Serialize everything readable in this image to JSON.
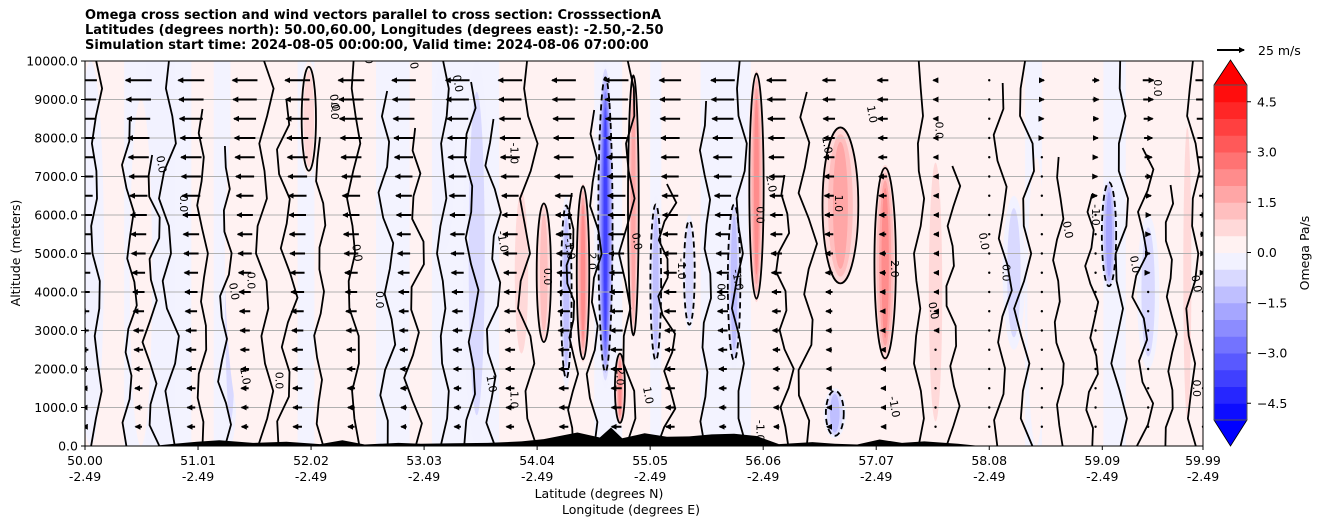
{
  "chart_data": {
    "type": "heatmap",
    "subtype": "filled-contour cross section with wind vectors",
    "title_lines": [
      "Omega cross section and wind vectors parallel to cross section: CrosssectionA",
      "Latitudes (degrees north): 50.00,60.00, Longitudes (degrees east): -2.50,-2.50",
      "Simulation start time: 2024-08-05 00:00:00, Valid time: 2024-08-06 07:00:00"
    ],
    "ylabel": "Altitude (meters)",
    "xlabel_lines": [
      "Latitude (degrees N)",
      "Longitude (degrees E)"
    ],
    "ylim": [
      0,
      10000
    ],
    "y_ticks": [
      "0.0",
      "1000.0",
      "2000.0",
      "3000.0",
      "4000.0",
      "5000.0",
      "6000.0",
      "7000.0",
      "8000.0",
      "9000.0",
      "10000.0"
    ],
    "y_tick_values": [
      0,
      1000,
      2000,
      3000,
      4000,
      5000,
      6000,
      7000,
      8000,
      9000,
      10000
    ],
    "grid": "horizontal",
    "xlim": [
      50.0,
      59.99
    ],
    "x_ticks": [
      {
        "lat": "50.00",
        "lon": "-2.49",
        "value": 50.0
      },
      {
        "lat": "51.01",
        "lon": "-2.49",
        "value": 51.01
      },
      {
        "lat": "52.02",
        "lon": "-2.49",
        "value": 52.02
      },
      {
        "lat": "53.03",
        "lon": "-2.49",
        "value": 53.03
      },
      {
        "lat": "54.04",
        "lon": "-2.49",
        "value": 54.04
      },
      {
        "lat": "55.05",
        "lon": "-2.49",
        "value": 55.05
      },
      {
        "lat": "56.06",
        "lon": "-2.49",
        "value": 56.06
      },
      {
        "lat": "57.07",
        "lon": "-2.49",
        "value": 57.07
      },
      {
        "lat": "58.08",
        "lon": "-2.49",
        "value": 58.08
      },
      {
        "lat": "59.09",
        "lon": "-2.49",
        "value": 59.09
      },
      {
        "lat": "59.99",
        "lon": "-2.49",
        "value": 59.99
      }
    ],
    "colorbar": {
      "label": "Omega Pa/s",
      "range": [
        -5,
        5
      ],
      "step": 0.5,
      "extend": "both",
      "ticks": [
        "-4.5",
        "-3.0",
        "-1.5",
        "0.0",
        "1.5",
        "3.0",
        "4.5"
      ],
      "tick_values": [
        -4.5,
        -3.0,
        -1.5,
        0.0,
        1.5,
        3.0,
        4.5
      ],
      "cmap": "bwr",
      "neg_color": "#0000ff",
      "pos_color": "#ff0000"
    },
    "quiver_key": {
      "label": "25 m/s",
      "speed": 25
    },
    "omega_features": [
      {
        "lat": 50.05,
        "z0": 0,
        "z1": 10000,
        "width": 0.12,
        "value": -0.3
      },
      {
        "lat": 50.5,
        "z0": 0,
        "z1": 9000,
        "width": 0.1,
        "value": 0.3
      },
      {
        "lat": 51.3,
        "z0": 0,
        "z1": 8000,
        "width": 0.08,
        "value": -0.6
      },
      {
        "lat": 51.5,
        "z0": 0,
        "z1": 10000,
        "width": 0.25,
        "value": 0.4
      },
      {
        "lat": 52.0,
        "z0": 7000,
        "z1": 10000,
        "width": 0.08,
        "value": 1.0
      },
      {
        "lat": 52.3,
        "z0": 0,
        "z1": 10000,
        "width": 0.12,
        "value": 0.5
      },
      {
        "lat": 53.2,
        "z0": 5000,
        "z1": 10000,
        "width": 0.1,
        "value": -0.5
      },
      {
        "lat": 53.5,
        "z0": 0,
        "z1": 10000,
        "width": 0.12,
        "value": -0.7
      },
      {
        "lat": 53.9,
        "z0": 2000,
        "z1": 7000,
        "width": 0.1,
        "value": 0.6
      },
      {
        "lat": 54.1,
        "z0": 2500,
        "z1": 6500,
        "width": 0.08,
        "value": 1.3
      },
      {
        "lat": 54.3,
        "z0": 1500,
        "z1": 6500,
        "width": 0.06,
        "value": -1.1
      },
      {
        "lat": 54.45,
        "z0": 2000,
        "z1": 7000,
        "width": 0.07,
        "value": 2.2
      },
      {
        "lat": 54.65,
        "z0": 1500,
        "z1": 10000,
        "width": 0.08,
        "value": -4.0
      },
      {
        "lat": 54.78,
        "z0": 500,
        "z1": 2500,
        "width": 0.05,
        "value": 2.5
      },
      {
        "lat": 54.9,
        "z0": 2500,
        "z1": 10000,
        "width": 0.06,
        "value": 1.8
      },
      {
        "lat": 55.1,
        "z0": 2000,
        "z1": 6500,
        "width": 0.06,
        "value": -1.2
      },
      {
        "lat": 55.4,
        "z0": 3000,
        "z1": 6000,
        "width": 0.06,
        "value": -1.0
      },
      {
        "lat": 55.8,
        "z0": 2000,
        "z1": 6500,
        "width": 0.07,
        "value": -1.3
      },
      {
        "lat": 56.0,
        "z0": 3500,
        "z1": 10000,
        "width": 0.08,
        "value": 2.4
      },
      {
        "lat": 56.75,
        "z0": 4000,
        "z1": 8500,
        "width": 0.2,
        "value": 1.8
      },
      {
        "lat": 57.15,
        "z0": 2000,
        "z1": 7500,
        "width": 0.12,
        "value": 2.2
      },
      {
        "lat": 56.7,
        "z0": 200,
        "z1": 1500,
        "width": 0.1,
        "value": -1.1
      },
      {
        "lat": 57.6,
        "z0": 0,
        "z1": 8000,
        "width": 0.1,
        "value": 0.6
      },
      {
        "lat": 58.3,
        "z0": 2500,
        "z1": 6500,
        "width": 0.1,
        "value": -0.8
      },
      {
        "lat": 58.5,
        "z0": 0,
        "z1": 7500,
        "width": 0.08,
        "value": 0.5
      },
      {
        "lat": 59.15,
        "z0": 4000,
        "z1": 7000,
        "width": 0.08,
        "value": -2.0
      },
      {
        "lat": 59.5,
        "z0": 2000,
        "z1": 6000,
        "width": 0.1,
        "value": -0.8
      },
      {
        "lat": 59.85,
        "z0": 0,
        "z1": 9000,
        "width": 0.06,
        "value": 0.6
      }
    ],
    "contour_labels": [
      {
        "lat": 50.65,
        "z": 7300,
        "text": "0.0"
      },
      {
        "lat": 50.85,
        "z": 6300,
        "text": "0.0"
      },
      {
        "lat": 51.3,
        "z": 4000,
        "text": "0.0"
      },
      {
        "lat": 51.45,
        "z": 4300,
        "text": "0.0"
      },
      {
        "lat": 51.4,
        "z": 1800,
        "text": "1.0"
      },
      {
        "lat": 51.7,
        "z": 1700,
        "text": "0.0"
      },
      {
        "lat": 52.2,
        "z": 8900,
        "text": "0.0"
      },
      {
        "lat": 52.2,
        "z": 8700,
        "text": "0.0"
      },
      {
        "lat": 52.4,
        "z": 5000,
        "text": "0.0"
      },
      {
        "lat": 52.6,
        "z": 3800,
        "text": "0.0"
      },
      {
        "lat": 52.9,
        "z": 10000,
        "text": "0.0"
      },
      {
        "lat": 52.5,
        "z": 10200,
        "text": "-1.0"
      },
      {
        "lat": 53.3,
        "z": 9400,
        "text": "0.0"
      },
      {
        "lat": 53.8,
        "z": 7600,
        "text": "-1.0"
      },
      {
        "lat": 53.7,
        "z": 5300,
        "text": "-1.0"
      },
      {
        "lat": 54.1,
        "z": 4400,
        "text": "0.0"
      },
      {
        "lat": 54.3,
        "z": 5100,
        "text": "-1.0"
      },
      {
        "lat": 54.5,
        "z": 4800,
        "text": "2.0"
      },
      {
        "lat": 54.9,
        "z": 5300,
        "text": "0.0"
      },
      {
        "lat": 55.3,
        "z": 4600,
        "text": "-1.0"
      },
      {
        "lat": 55.8,
        "z": 4300,
        "text": "-1.0"
      },
      {
        "lat": 55.65,
        "z": 4000,
        "text": "0.0"
      },
      {
        "lat": 56.1,
        "z": 6800,
        "text": "2.0"
      },
      {
        "lat": 56.0,
        "z": 6000,
        "text": "0.0"
      },
      {
        "lat": 56.6,
        "z": 7800,
        "text": "1.0"
      },
      {
        "lat": 56.7,
        "z": 6300,
        "text": "1.0"
      },
      {
        "lat": 57.0,
        "z": 8600,
        "text": "1.0"
      },
      {
        "lat": 57.2,
        "z": 4600,
        "text": "2.0"
      },
      {
        "lat": 57.55,
        "z": 3500,
        "text": "0.0"
      },
      {
        "lat": 57.6,
        "z": 8200,
        "text": "0.0"
      },
      {
        "lat": 58.0,
        "z": 5300,
        "text": "0.0"
      },
      {
        "lat": 58.2,
        "z": 4500,
        "text": "0.0"
      },
      {
        "lat": 58.75,
        "z": 5600,
        "text": "0.0"
      },
      {
        "lat": 59.0,
        "z": 6000,
        "text": "-1.0"
      },
      {
        "lat": 59.35,
        "z": 4700,
        "text": "0.0"
      },
      {
        "lat": 59.55,
        "z": 9300,
        "text": "0.0"
      },
      {
        "lat": 59.9,
        "z": 4200,
        "text": "0.0"
      },
      {
        "lat": 59.9,
        "z": 1500,
        "text": "0.0"
      },
      {
        "lat": 57.2,
        "z": 1000,
        "text": "-1.0"
      },
      {
        "lat": 56.0,
        "z": 400,
        "text": "-1.0"
      },
      {
        "lat": 55.0,
        "z": 1300,
        "text": "1.0"
      },
      {
        "lat": 54.75,
        "z": 1800,
        "text": "2.0"
      },
      {
        "lat": 53.6,
        "z": 1600,
        "text": "1.0"
      },
      {
        "lat": 53.8,
        "z": 1200,
        "text": "1.0"
      }
    ],
    "terrain": {
      "lats": [
        50.0,
        50.6,
        50.8,
        51.0,
        51.2,
        51.5,
        51.8,
        52.1,
        52.3,
        52.5,
        52.8,
        53.0,
        53.3,
        53.6,
        53.9,
        54.1,
        54.4,
        54.6,
        54.7,
        54.8,
        55.0,
        55.2,
        55.4,
        55.6,
        55.8,
        56.0,
        56.2,
        56.5,
        56.7,
        56.9,
        57.1,
        57.3,
        57.5,
        57.8,
        58.0,
        59.99
      ],
      "heights": [
        0,
        0,
        60,
        110,
        150,
        80,
        110,
        50,
        150,
        40,
        80,
        60,
        70,
        80,
        120,
        180,
        350,
        220,
        480,
        200,
        330,
        240,
        250,
        300,
        320,
        260,
        50,
        100,
        60,
        40,
        170,
        80,
        120,
        60,
        0,
        0
      ]
    },
    "wind": {
      "note": "horizontal component along section in m/s, negative = toward lower latitude",
      "column_lats": [
        50.0,
        50.48,
        50.95,
        51.43,
        51.9,
        52.38,
        52.85,
        53.33,
        53.8,
        54.28,
        54.75,
        55.23,
        55.7,
        56.18,
        56.65,
        57.13,
        57.6,
        58.08,
        58.55,
        59.03,
        59.5,
        59.99
      ],
      "levels": [
        500,
        1000,
        1500,
        2000,
        2500,
        3000,
        3500,
        4000,
        4500,
        5000,
        5500,
        6000,
        6500,
        7000,
        7500,
        8000,
        8500,
        9000,
        9500
      ],
      "upper_speeds": [
        -22,
        -24,
        -24,
        -23,
        -23,
        -24,
        -22,
        -22,
        -22,
        -22,
        -22,
        -20,
        -22,
        -18,
        -12,
        -10,
        -4,
        -2,
        4,
        6,
        10,
        14
      ],
      "lower_speeds": [
        -4,
        -6,
        -7,
        -6,
        -8,
        -6,
        -5,
        -6,
        -7,
        -8,
        -9,
        -8,
        -6,
        -5,
        -4,
        -3,
        -2,
        -1,
        -2,
        -2,
        -1,
        -2
      ]
    }
  }
}
